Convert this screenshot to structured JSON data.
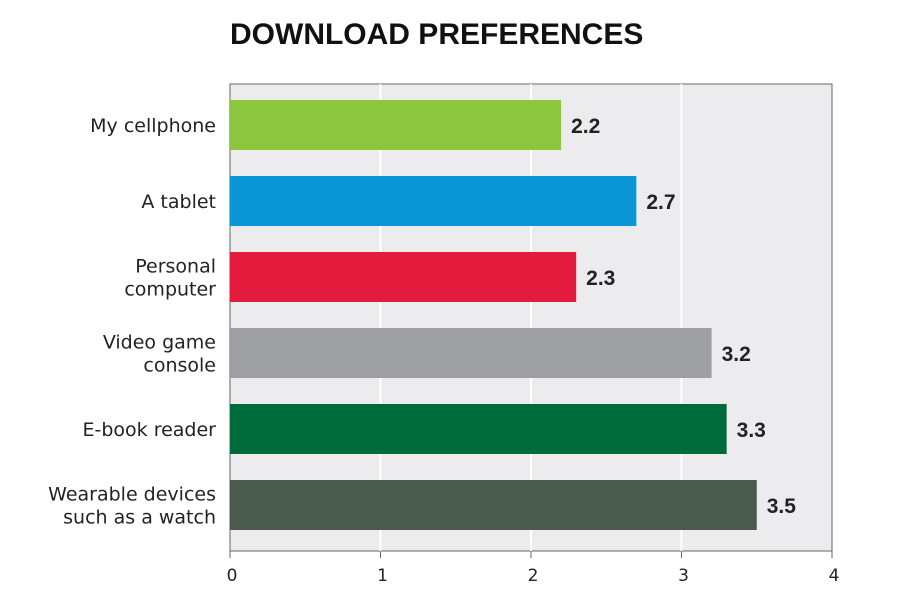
{
  "chart_data": {
    "type": "bar",
    "orientation": "horizontal",
    "title": "DOWNLOAD PREFERENCES",
    "categories": [
      [
        "My cellphone"
      ],
      [
        "A tablet"
      ],
      [
        "Personal",
        "computer"
      ],
      [
        "Video game",
        "console"
      ],
      [
        "E-book reader"
      ],
      [
        "Wearable devices",
        "such as a watch"
      ]
    ],
    "values": [
      2.2,
      2.7,
      2.3,
      3.2,
      3.3,
      3.5
    ],
    "value_labels": [
      "2.2",
      "2.7",
      "2.3",
      "3.2",
      "3.3",
      "3.5"
    ],
    "bar_colors": [
      "#8cc63f",
      "#0a96d6",
      "#e31c3d",
      "#9d9fa2",
      "#006b3a",
      "#4a5a4f"
    ],
    "xlim": [
      0,
      4
    ],
    "xticks": [
      0,
      1,
      2,
      3,
      4
    ],
    "grid": true,
    "background": "#ececee"
  }
}
